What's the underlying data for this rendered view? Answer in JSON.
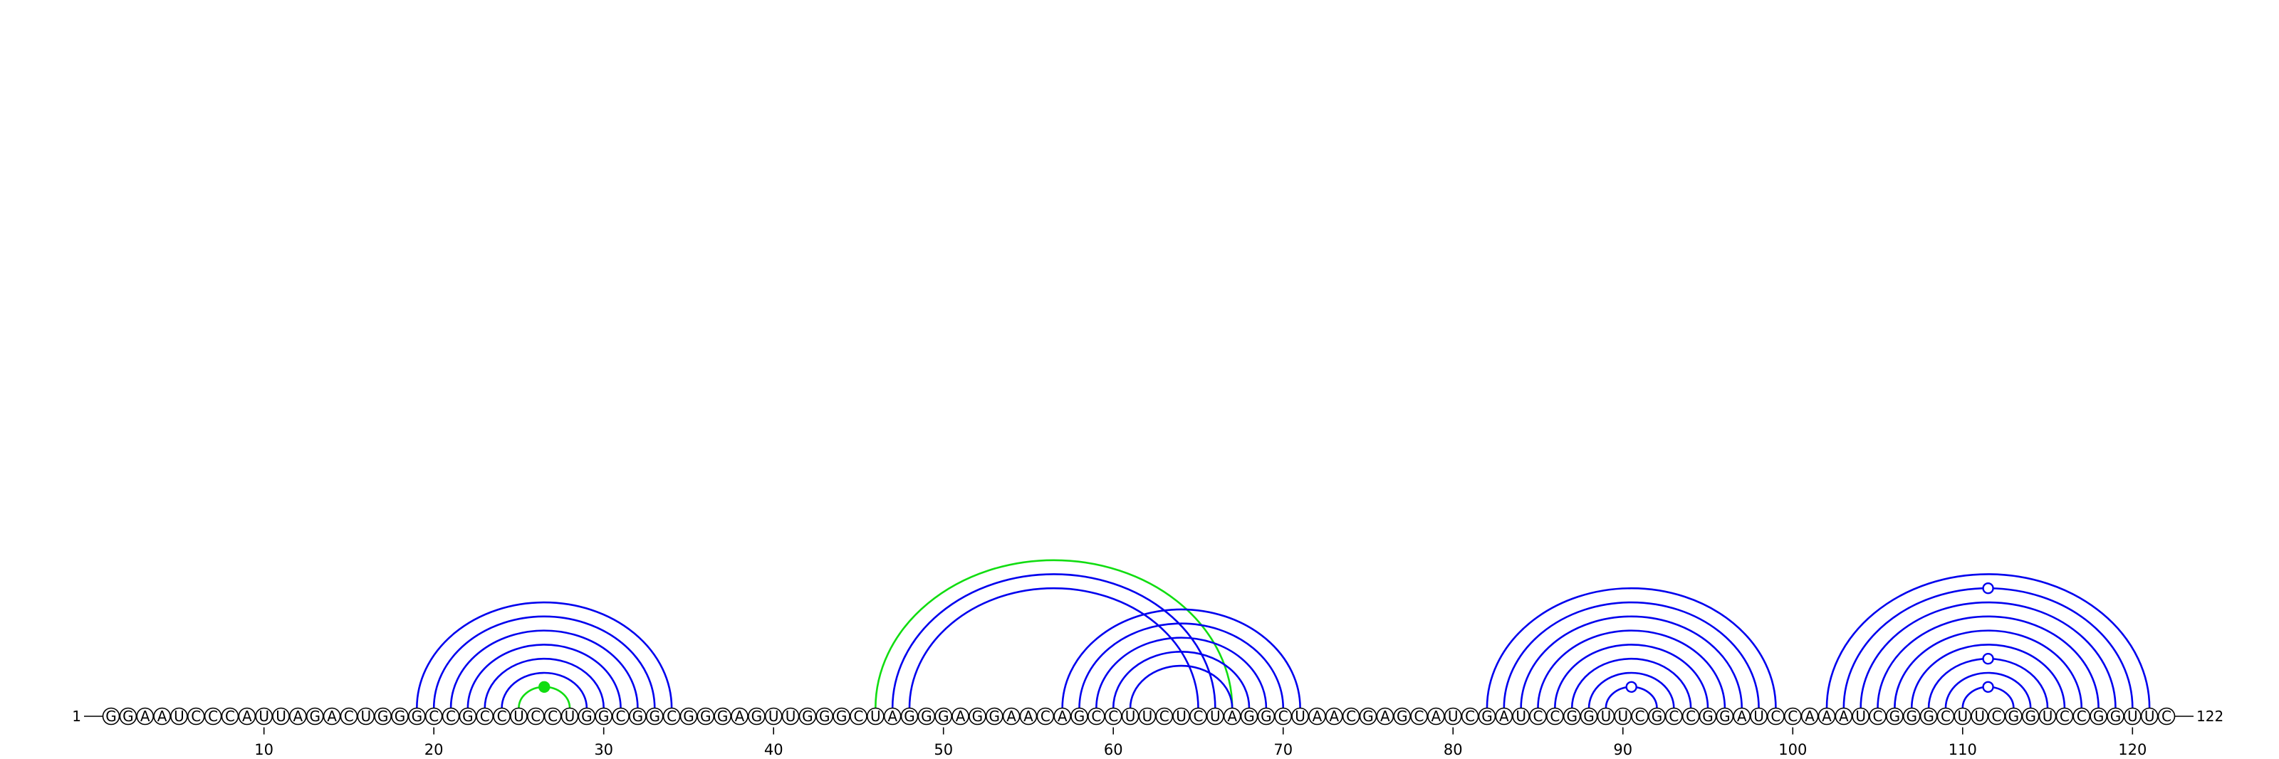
{
  "sequence": "GGAAUCCCAUUAGACUGGGCCGCCUCCUGGCGGCGGGAGUUGGGCUAGGGAGGAACAGCCUUCUCUAGGCUAACGAGCAUCGAUCCGGUUCGCCGGAUCCAAAUCGGGCUUCGGUCCGGUUC",
  "five_prime_label": "1",
  "three_prime_label": "122",
  "ticks": [
    10,
    20,
    30,
    40,
    50,
    60,
    70,
    80,
    90,
    100,
    110,
    120
  ],
  "colors": {
    "canonical_pair": "#0000ee",
    "noncanonical_pair": "#11dd11",
    "nucleotide_stroke": "#000000",
    "nucleotide_fill": "#ffffff"
  },
  "base_pairs": [
    {
      "i": 19,
      "j": 34,
      "type": "canonical"
    },
    {
      "i": 20,
      "j": 33,
      "type": "canonical"
    },
    {
      "i": 21,
      "j": 32,
      "type": "canonical"
    },
    {
      "i": 22,
      "j": 31,
      "type": "canonical"
    },
    {
      "i": 23,
      "j": 30,
      "type": "canonical"
    },
    {
      "i": 24,
      "j": 29,
      "type": "canonical"
    },
    {
      "i": 25,
      "j": 28,
      "type": "noncanonical",
      "marker": "filled"
    },
    {
      "i": 46,
      "j": 67,
      "type": "noncanonical"
    },
    {
      "i": 47,
      "j": 66,
      "type": "canonical"
    },
    {
      "i": 48,
      "j": 65,
      "type": "canonical"
    },
    {
      "i": 57,
      "j": 71,
      "type": "canonical"
    },
    {
      "i": 58,
      "j": 70,
      "type": "canonical"
    },
    {
      "i": 59,
      "j": 69,
      "type": "canonical"
    },
    {
      "i": 60,
      "j": 68,
      "type": "canonical"
    },
    {
      "i": 61,
      "j": 67,
      "type": "canonical"
    },
    {
      "i": 82,
      "j": 99,
      "type": "canonical"
    },
    {
      "i": 83,
      "j": 98,
      "type": "canonical"
    },
    {
      "i": 84,
      "j": 97,
      "type": "canonical"
    },
    {
      "i": 85,
      "j": 96,
      "type": "canonical"
    },
    {
      "i": 86,
      "j": 95,
      "type": "canonical"
    },
    {
      "i": 87,
      "j": 94,
      "type": "canonical"
    },
    {
      "i": 88,
      "j": 93,
      "type": "canonical"
    },
    {
      "i": 89,
      "j": 92,
      "type": "canonical",
      "marker": "open"
    },
    {
      "i": 102,
      "j": 121,
      "type": "canonical"
    },
    {
      "i": 103,
      "j": 120,
      "type": "canonical",
      "marker": "open"
    },
    {
      "i": 104,
      "j": 119,
      "type": "canonical"
    },
    {
      "i": 105,
      "j": 118,
      "type": "canonical"
    },
    {
      "i": 106,
      "j": 117,
      "type": "canonical"
    },
    {
      "i": 107,
      "j": 116,
      "type": "canonical"
    },
    {
      "i": 108,
      "j": 115,
      "type": "canonical",
      "marker": "open"
    },
    {
      "i": 109,
      "j": 114,
      "type": "canonical"
    },
    {
      "i": 110,
      "j": 113,
      "type": "canonical",
      "marker": "open"
    }
  ]
}
